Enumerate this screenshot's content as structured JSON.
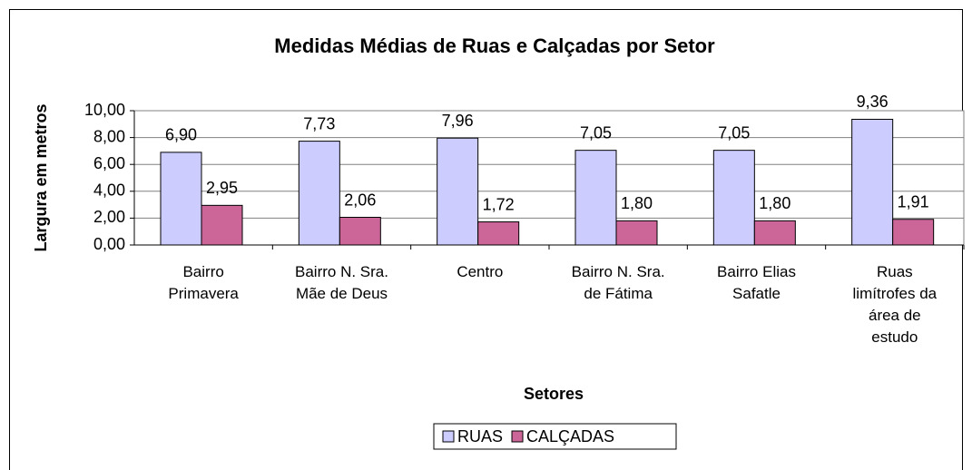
{
  "chart_data": {
    "type": "bar",
    "title": "Medidas Médias de Ruas e Calçadas por Setor",
    "x_label": "Setores",
    "y_label": "Largura em metros",
    "categories": [
      "Bairro\nPrimavera",
      "Bairro N. Sra.\nMãe de Deus",
      "Centro",
      "Bairro N. Sra.\nde Fátima",
      "Bairro Elias\nSafatle",
      "Ruas\nlimítrofes da\nárea de\nestudo"
    ],
    "series": [
      {
        "name": "RUAS",
        "color": "#ccccff",
        "values": [
          6.9,
          7.73,
          7.96,
          7.05,
          7.05,
          9.36
        ],
        "value_labels": [
          "6,90",
          "7,73",
          "7,96",
          "7,05",
          "7,05",
          "9,36"
        ]
      },
      {
        "name": "CALÇADAS",
        "color": "#cc6699",
        "values": [
          2.95,
          2.06,
          1.72,
          1.8,
          1.8,
          1.91
        ],
        "value_labels": [
          "2,95",
          "2,06",
          "1,72",
          "1,80",
          "1,80",
          "1,91"
        ]
      }
    ],
    "ylim": [
      0,
      10
    ],
    "yticks": [
      {
        "value": 0,
        "label": "0,00"
      },
      {
        "value": 2,
        "label": "2,00"
      },
      {
        "value": 4,
        "label": "4,00"
      },
      {
        "value": 6,
        "label": "6,00"
      },
      {
        "value": 8,
        "label": "8,00"
      },
      {
        "value": 10,
        "label": "10,00"
      }
    ],
    "grid": true,
    "legend": "bottom"
  }
}
